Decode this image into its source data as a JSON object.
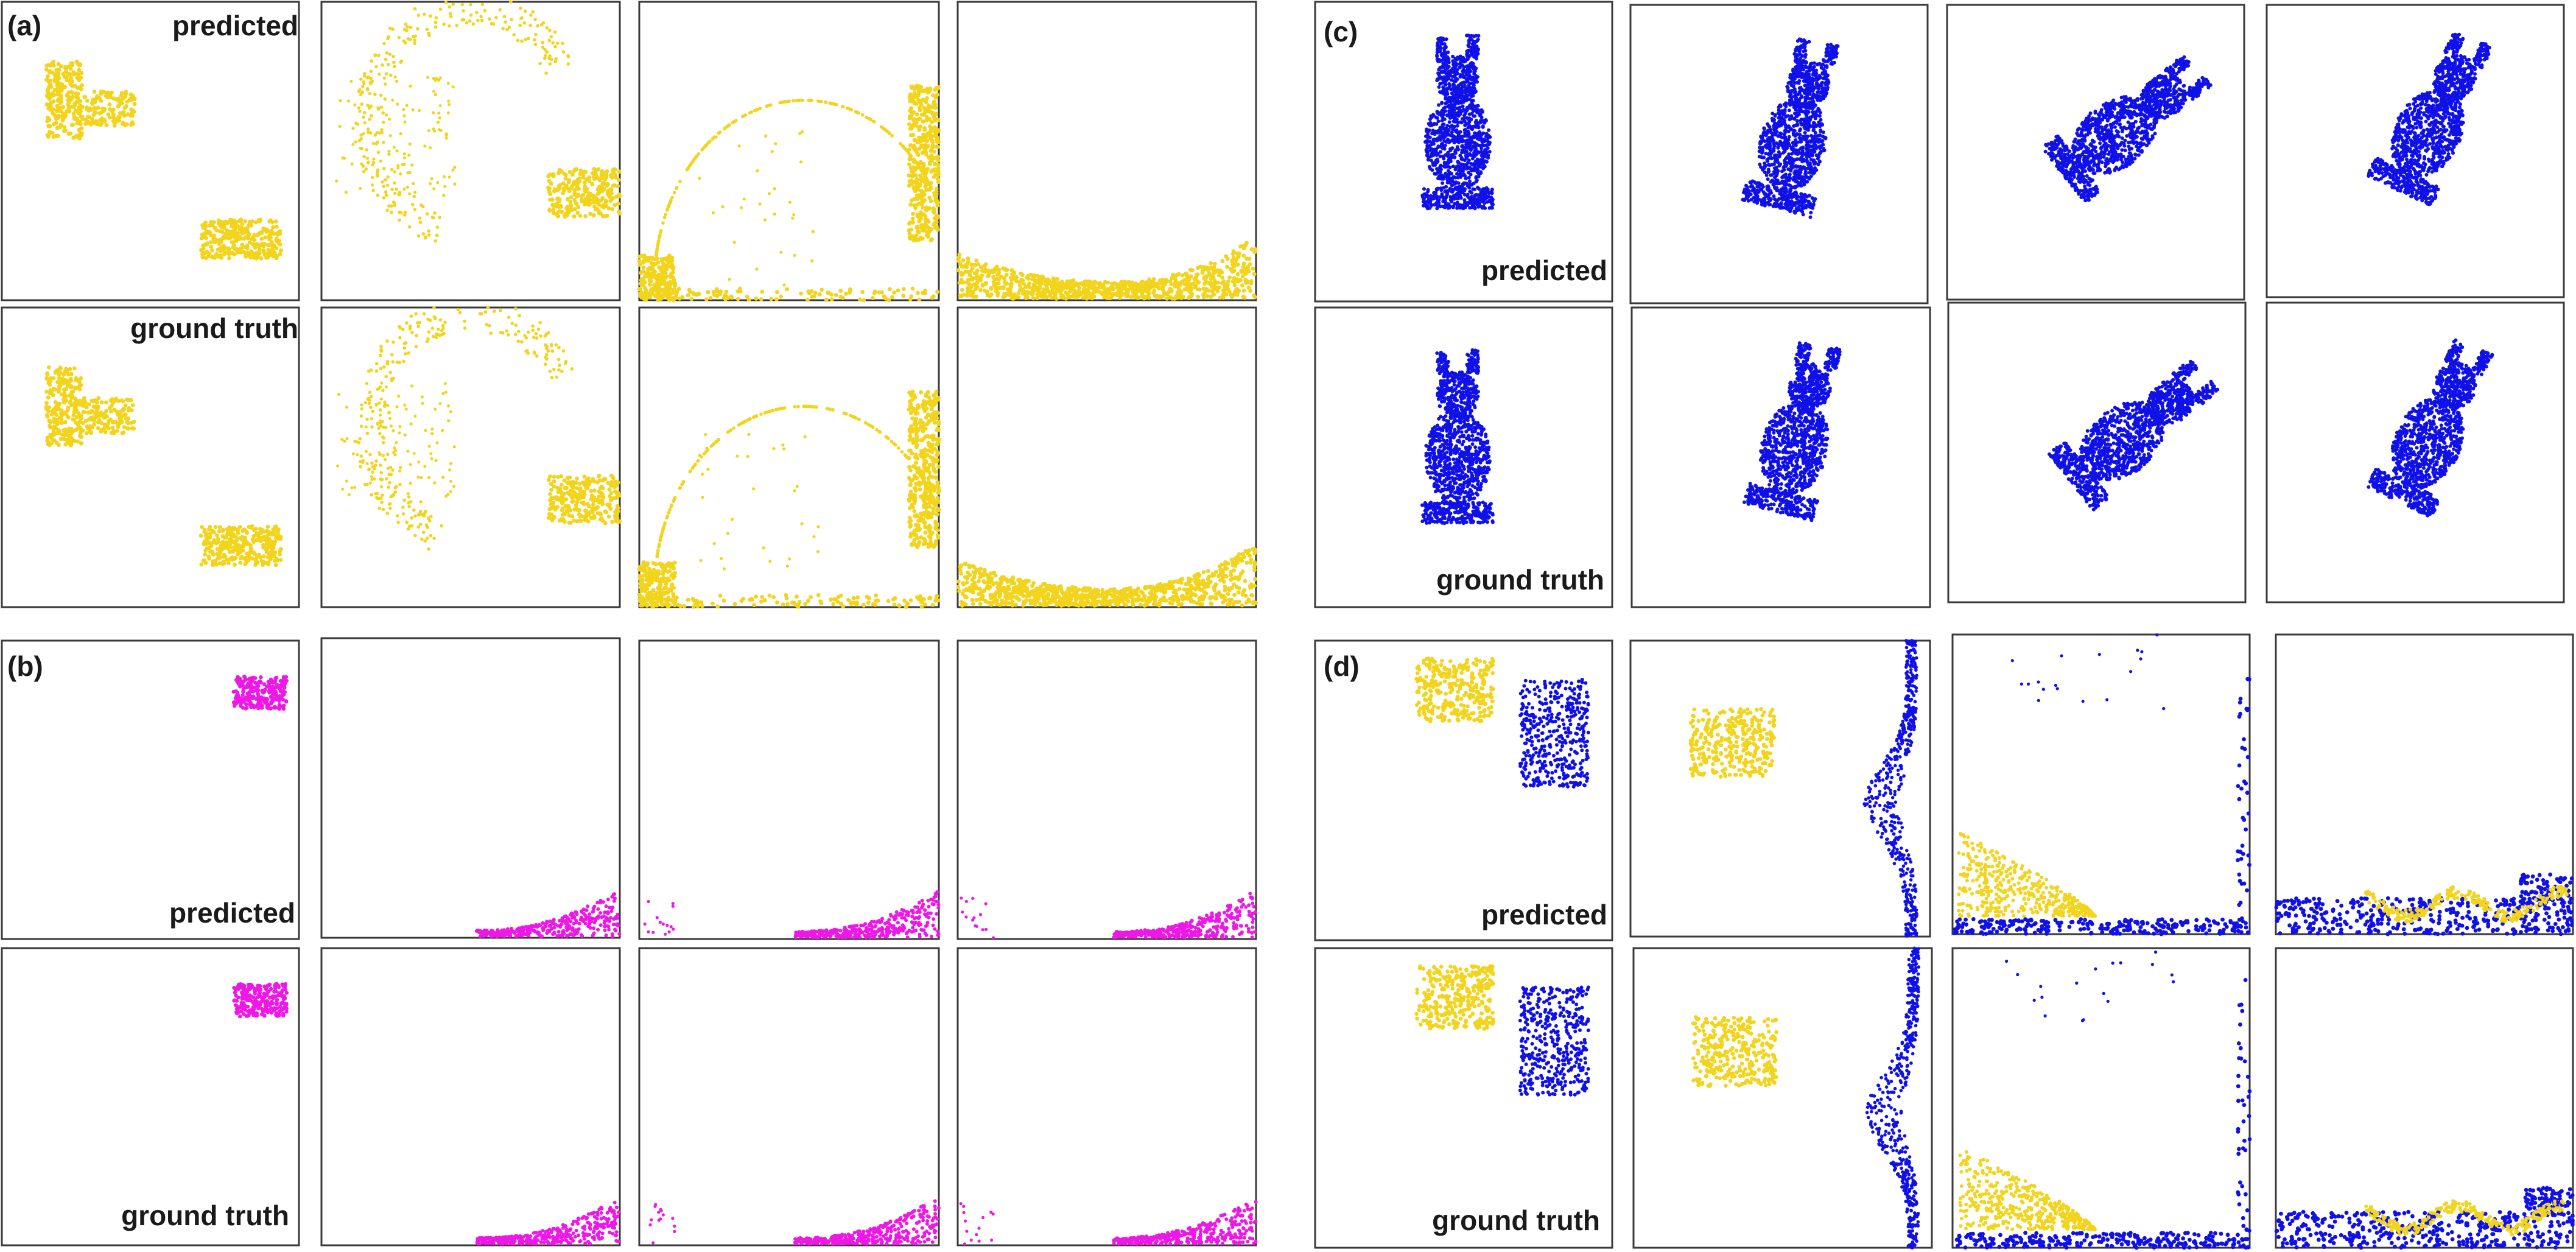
{
  "colors": {
    "yellow": "#f2d41c",
    "blue": "#1010e8",
    "magenta": "#ee18e6",
    "frame": "#3a3a3a",
    "text": "#1a1a1a"
  },
  "panels": [
    {
      "label": "(a)",
      "row_labels": [
        "predicted",
        "ground truth"
      ]
    },
    {
      "label": "(b)",
      "row_labels": [
        "predicted",
        "ground truth"
      ]
    },
    {
      "label": "(c)",
      "row_labels": [
        "predicted",
        "ground truth"
      ]
    },
    {
      "label": "(d)",
      "row_labels": [
        "predicted",
        "ground truth"
      ]
    }
  ]
}
